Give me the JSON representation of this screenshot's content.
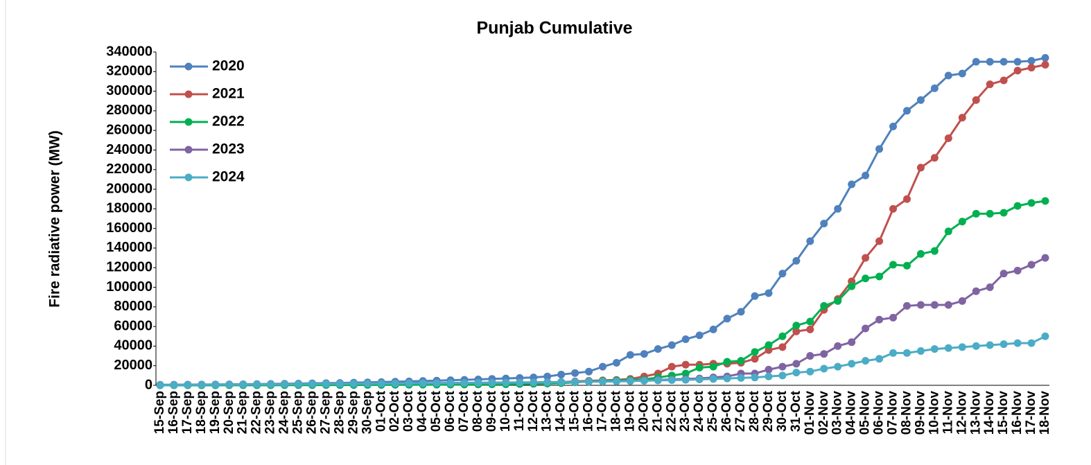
{
  "chart_data": {
    "type": "line",
    "title": "Punjab Cumulative",
    "y_label": "Fire radiative power (MW)",
    "categories": [
      "15-Sep",
      "16-Sep",
      "17-Sep",
      "18-Sep",
      "19-Sep",
      "20-Sep",
      "21-Sep",
      "22-Sep",
      "23-Sep",
      "24-Sep",
      "25-Sep",
      "26-Sep",
      "27-Sep",
      "28-Sep",
      "29-Sep",
      "30-Sep",
      "01-Oct",
      "02-Oct",
      "03-Oct",
      "04-Oct",
      "05-Oct",
      "06-Oct",
      "07-Oct",
      "08-Oct",
      "09-Oct",
      "10-Oct",
      "11-Oct",
      "12-Oct",
      "13-Oct",
      "14-Oct",
      "15-Oct",
      "16-Oct",
      "17-Oct",
      "18-Oct",
      "19-Oct",
      "20-Oct",
      "21-Oct",
      "22-Oct",
      "23-Oct",
      "24-Oct",
      "25-Oct",
      "26-Oct",
      "27-Oct",
      "28-Oct",
      "29-Oct",
      "30-Oct",
      "31-Oct",
      "01-Nov",
      "02-Nov",
      "03-Nov",
      "04-Nov",
      "05-Nov",
      "06-Nov",
      "07-Nov",
      "08-Nov",
      "09-Nov",
      "10-Nov",
      "11-Nov",
      "12-Nov",
      "13-Nov",
      "14-Nov",
      "15-Nov",
      "16-Nov",
      "17-Nov",
      "18-Nov"
    ],
    "series": [
      {
        "name": "2020",
        "color": "#4f81bd",
        "values": [
          500,
          600,
          700,
          800,
          900,
          1000,
          1100,
          1200,
          1400,
          1600,
          1800,
          2000,
          2200,
          2400,
          2700,
          3000,
          3300,
          3700,
          4000,
          4400,
          4800,
          5200,
          5600,
          6000,
          6500,
          7000,
          7500,
          8000,
          9000,
          11000,
          12500,
          14000,
          19000,
          23000,
          31000,
          32000,
          37000,
          41000,
          47000,
          51000,
          57000,
          68000,
          75000,
          91000,
          94000,
          114000,
          127000,
          147000,
          165000,
          180000,
          205000,
          214000,
          241000,
          264000,
          280000,
          291000,
          303000,
          316000,
          318000,
          330000,
          330000,
          330000,
          330000,
          331000,
          334000
        ]
      },
      {
        "name": "2021",
        "color": "#c0504d",
        "values": [
          100,
          100,
          200,
          200,
          200,
          300,
          300,
          300,
          400,
          400,
          400,
          500,
          500,
          500,
          600,
          600,
          700,
          800,
          900,
          1000,
          1100,
          1200,
          1300,
          1500,
          1700,
          1900,
          2100,
          2400,
          2800,
          3200,
          4000,
          4500,
          5000,
          5500,
          6500,
          9000,
          12000,
          19000,
          21000,
          21000,
          22000,
          22000,
          23000,
          27000,
          36000,
          39000,
          55000,
          57000,
          77000,
          88000,
          106000,
          130000,
          147000,
          180000,
          190000,
          222000,
          232000,
          252000,
          273000,
          291000,
          307000,
          311000,
          321000,
          324000,
          327000
        ]
      },
      {
        "name": "2022",
        "color": "#00b050",
        "values": [
          0,
          0,
          0,
          0,
          0,
          100,
          100,
          100,
          100,
          200,
          200,
          200,
          300,
          300,
          300,
          400,
          400,
          500,
          500,
          600,
          600,
          700,
          800,
          900,
          1000,
          1100,
          1300,
          1500,
          1800,
          2200,
          3000,
          4000,
          4500,
          5000,
          5500,
          6000,
          8000,
          10000,
          12000,
          18000,
          19000,
          24000,
          25000,
          34000,
          41000,
          50000,
          61000,
          65000,
          81000,
          86000,
          101000,
          109000,
          111000,
          123000,
          122000,
          134000,
          137000,
          157000,
          167000,
          175000,
          175000,
          176000,
          183000,
          186000,
          188000
        ]
      },
      {
        "name": "2023",
        "color": "#8064a2",
        "values": [
          300,
          400,
          500,
          600,
          700,
          800,
          900,
          1000,
          1100,
          1200,
          1300,
          1400,
          1500,
          1600,
          1700,
          1800,
          1900,
          2000,
          2100,
          2200,
          2300,
          2400,
          2500,
          2600,
          2700,
          2800,
          2900,
          3000,
          3200,
          3400,
          3600,
          3800,
          4000,
          4200,
          4500,
          5000,
          5500,
          6000,
          6500,
          7000,
          8000,
          9000,
          12000,
          12000,
          16000,
          19000,
          22000,
          30000,
          32000,
          40000,
          44000,
          58000,
          67000,
          69000,
          81000,
          82000,
          82000,
          82000,
          86000,
          96000,
          100000,
          114000,
          117000,
          123000,
          130000
        ]
      },
      {
        "name": "2024",
        "color": "#4bacc6",
        "values": [
          200,
          300,
          400,
          500,
          600,
          700,
          800,
          900,
          1000,
          1100,
          1200,
          1300,
          1400,
          1500,
          1600,
          1700,
          1800,
          1900,
          2000,
          2100,
          2200,
          2300,
          2400,
          2500,
          2600,
          2700,
          2800,
          2900,
          3000,
          3200,
          3400,
          3600,
          3800,
          4000,
          4300,
          4600,
          5000,
          5300,
          5600,
          6000,
          6500,
          7000,
          7500,
          8000,
          9000,
          10000,
          13000,
          14000,
          17000,
          19000,
          22000,
          25000,
          27000,
          33000,
          33000,
          35000,
          37000,
          38000,
          39000,
          40000,
          41000,
          42000,
          43000,
          43000,
          50000
        ]
      }
    ],
    "ylim": [
      0,
      340000
    ],
    "yticks": [
      0,
      20000,
      40000,
      60000,
      80000,
      100000,
      120000,
      140000,
      160000,
      180000,
      200000,
      220000,
      240000,
      260000,
      280000,
      300000,
      320000,
      340000
    ],
    "grid": false,
    "legend": "upper-left"
  }
}
